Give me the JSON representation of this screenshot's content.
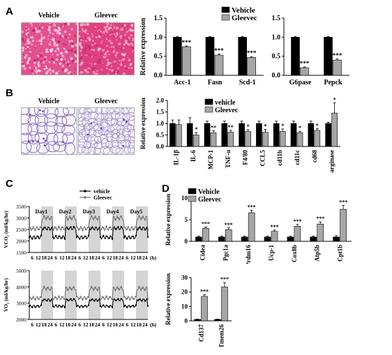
{
  "panels": {
    "A": {
      "label": "A",
      "img_labels": [
        "Vehicle",
        "Gleevec"
      ]
    },
    "B": {
      "label": "B",
      "img_labels": [
        "Vehicle",
        "Gleevec"
      ]
    },
    "C": {
      "label": "C"
    },
    "D": {
      "label": "D"
    }
  },
  "colors": {
    "vehicle": "#000000",
    "gleevec": "#a6a6a6",
    "he_stain": "#e83f86",
    "adipose": "#b9a7d4"
  },
  "chart_data": [
    {
      "id": "A1",
      "type": "bar",
      "ylabel": "Relative expression",
      "ylim": [
        0,
        1.5
      ],
      "yticks": [
        "0.0",
        "0.5",
        "1.0",
        "1.5"
      ],
      "categories": [
        "Acc-1",
        "Fasn",
        "Scd-1"
      ],
      "series": [
        {
          "name": "Vehicle",
          "values": [
            1.0,
            1.0,
            1.0
          ],
          "err": [
            0.02,
            0.02,
            0.02
          ]
        },
        {
          "name": "Gleevec",
          "values": [
            0.75,
            0.53,
            0.47
          ],
          "err": [
            0.02,
            0.03,
            0.02
          ]
        }
      ],
      "sig": [
        "***",
        "***",
        "***"
      ],
      "legend": [
        "Vehicle",
        "Gleevec"
      ]
    },
    {
      "id": "A2",
      "type": "bar",
      "ylim": [
        0,
        1.5
      ],
      "yticks": [
        "0.0",
        "0.5",
        "1.0",
        "1.5"
      ],
      "categories": [
        "G6pase",
        "Pepck"
      ],
      "series": [
        {
          "name": "Vehicle",
          "values": [
            1.0,
            1.0
          ],
          "err": [
            0.02,
            0.02
          ]
        },
        {
          "name": "Gleevec",
          "values": [
            0.2,
            0.4
          ],
          "err": [
            0.02,
            0.03
          ]
        }
      ],
      "sig": [
        "***",
        "***"
      ],
      "legend": [
        "Vehicle",
        "Gleevec"
      ]
    },
    {
      "id": "B1",
      "type": "bar",
      "ylabel": "Relative expression",
      "ylim": [
        0,
        2.0
      ],
      "yticks": [
        "0.0",
        "0.5",
        "1.0",
        "1.5",
        "2.0"
      ],
      "categories": [
        "IL-1β",
        "IL-6",
        "MCP-1",
        "TNF-α",
        "F4/80",
        "CCL5",
        "cd11b",
        "cd11c",
        "cd68",
        "arginase"
      ],
      "series": [
        {
          "name": "vehicle",
          "values": [
            1.0,
            1.0,
            1.0,
            1.0,
            1.0,
            1.0,
            1.0,
            1.0,
            1.0,
            1.0
          ],
          "err": [
            0.15,
            0.25,
            0.1,
            0.1,
            0.1,
            0.1,
            0.1,
            0.1,
            0.1,
            0.05
          ]
        },
        {
          "name": "Gleevec",
          "values": [
            0.95,
            0.5,
            0.6,
            0.62,
            0.65,
            0.62,
            0.66,
            0.6,
            0.7,
            1.45
          ],
          "err": [
            0.2,
            0.1,
            0.08,
            0.08,
            0.08,
            0.12,
            0.1,
            0.06,
            0.08,
            0.45
          ]
        }
      ],
      "sig": [
        "",
        "*",
        "**",
        "**",
        "*",
        "*",
        "*",
        "*",
        "*",
        "*"
      ],
      "legend": [
        "vehicle",
        "Gleevec"
      ]
    },
    {
      "id": "C1",
      "type": "line",
      "ylabel": "VCO₂ (ml/kg/hr)",
      "ylim": [
        1500,
        3500
      ],
      "yticks": [
        "1500",
        "2000",
        "2500",
        "3000",
        "3500"
      ],
      "xticks": [
        "6",
        "12",
        "18",
        "24",
        "6",
        "12",
        "18",
        "24",
        "6",
        "12",
        "18",
        "24",
        "6",
        "12",
        "18",
        "24",
        "6",
        "12",
        "18",
        "24"
      ],
      "xunit": "(h)",
      "days": [
        "Day1",
        "Day2",
        "Day3",
        "Day4",
        "Day5"
      ],
      "series": [
        {
          "name": "vehicle",
          "mean": 2250,
          "amp": 300
        },
        {
          "name": "Gleevec",
          "mean": 2650,
          "amp": 350
        }
      ],
      "legend": [
        "vehicle",
        "Gleevec"
      ]
    },
    {
      "id": "C2",
      "type": "line",
      "ylabel": "VO₂ (ml/kg/hr)",
      "ylim": [
        2000,
        5000
      ],
      "yticks": [
        "2000",
        "3000",
        "4000",
        "5000"
      ],
      "xticks": [
        "6",
        "12",
        "18",
        "24",
        "6",
        "12",
        "18",
        "24",
        "6",
        "12",
        "18",
        "24",
        "6",
        "12",
        "18",
        "24",
        "6",
        "12",
        "18",
        "24"
      ],
      "xunit": "(h)",
      "series": [
        {
          "name": "vehicle",
          "mean": 2900,
          "amp": 300
        },
        {
          "name": "Gleevec",
          "mean": 3450,
          "amp": 450
        }
      ]
    },
    {
      "id": "D1",
      "type": "bar",
      "ylabel": "Relative expression",
      "ylim": [
        0,
        10
      ],
      "yticks": [
        "0",
        "5",
        "10"
      ],
      "categories": [
        "Cidea",
        "Pgc1a",
        "Prdm16",
        "Ucp-1",
        "Cox8b",
        "Atp5b",
        "Cpt1b"
      ],
      "series": [
        {
          "name": "Vehicle",
          "values": [
            1,
            1,
            1,
            1,
            1,
            1,
            1
          ],
          "err": [
            0.2,
            0.2,
            0.2,
            0.2,
            0.2,
            0.2,
            0.3
          ]
        },
        {
          "name": "Gleevec",
          "values": [
            3.0,
            2.7,
            6.6,
            2.3,
            3.5,
            4.0,
            7.4
          ],
          "err": [
            0.3,
            0.4,
            0.6,
            0.3,
            0.4,
            0.5,
            0.9
          ]
        }
      ],
      "sig": [
        "***",
        "***",
        "***",
        "***",
        "***",
        "***",
        "***"
      ],
      "legend": [
        "Vehicle",
        "Gleevec"
      ]
    },
    {
      "id": "D2",
      "type": "bar",
      "ylabel": "Relative expression",
      "ylim": [
        0,
        30
      ],
      "yticks": [
        "0",
        "10",
        "20",
        "30"
      ],
      "categories": [
        "Cd137",
        "Tmem26"
      ],
      "series": [
        {
          "name": "Vehicle",
          "values": [
            1,
            1
          ],
          "err": [
            0.2,
            0.2
          ]
        },
        {
          "name": "Gleevec",
          "values": [
            17,
            23.5
          ],
          "err": [
            1.2,
            3.0
          ]
        }
      ],
      "sig": [
        "***",
        "***"
      ]
    }
  ]
}
